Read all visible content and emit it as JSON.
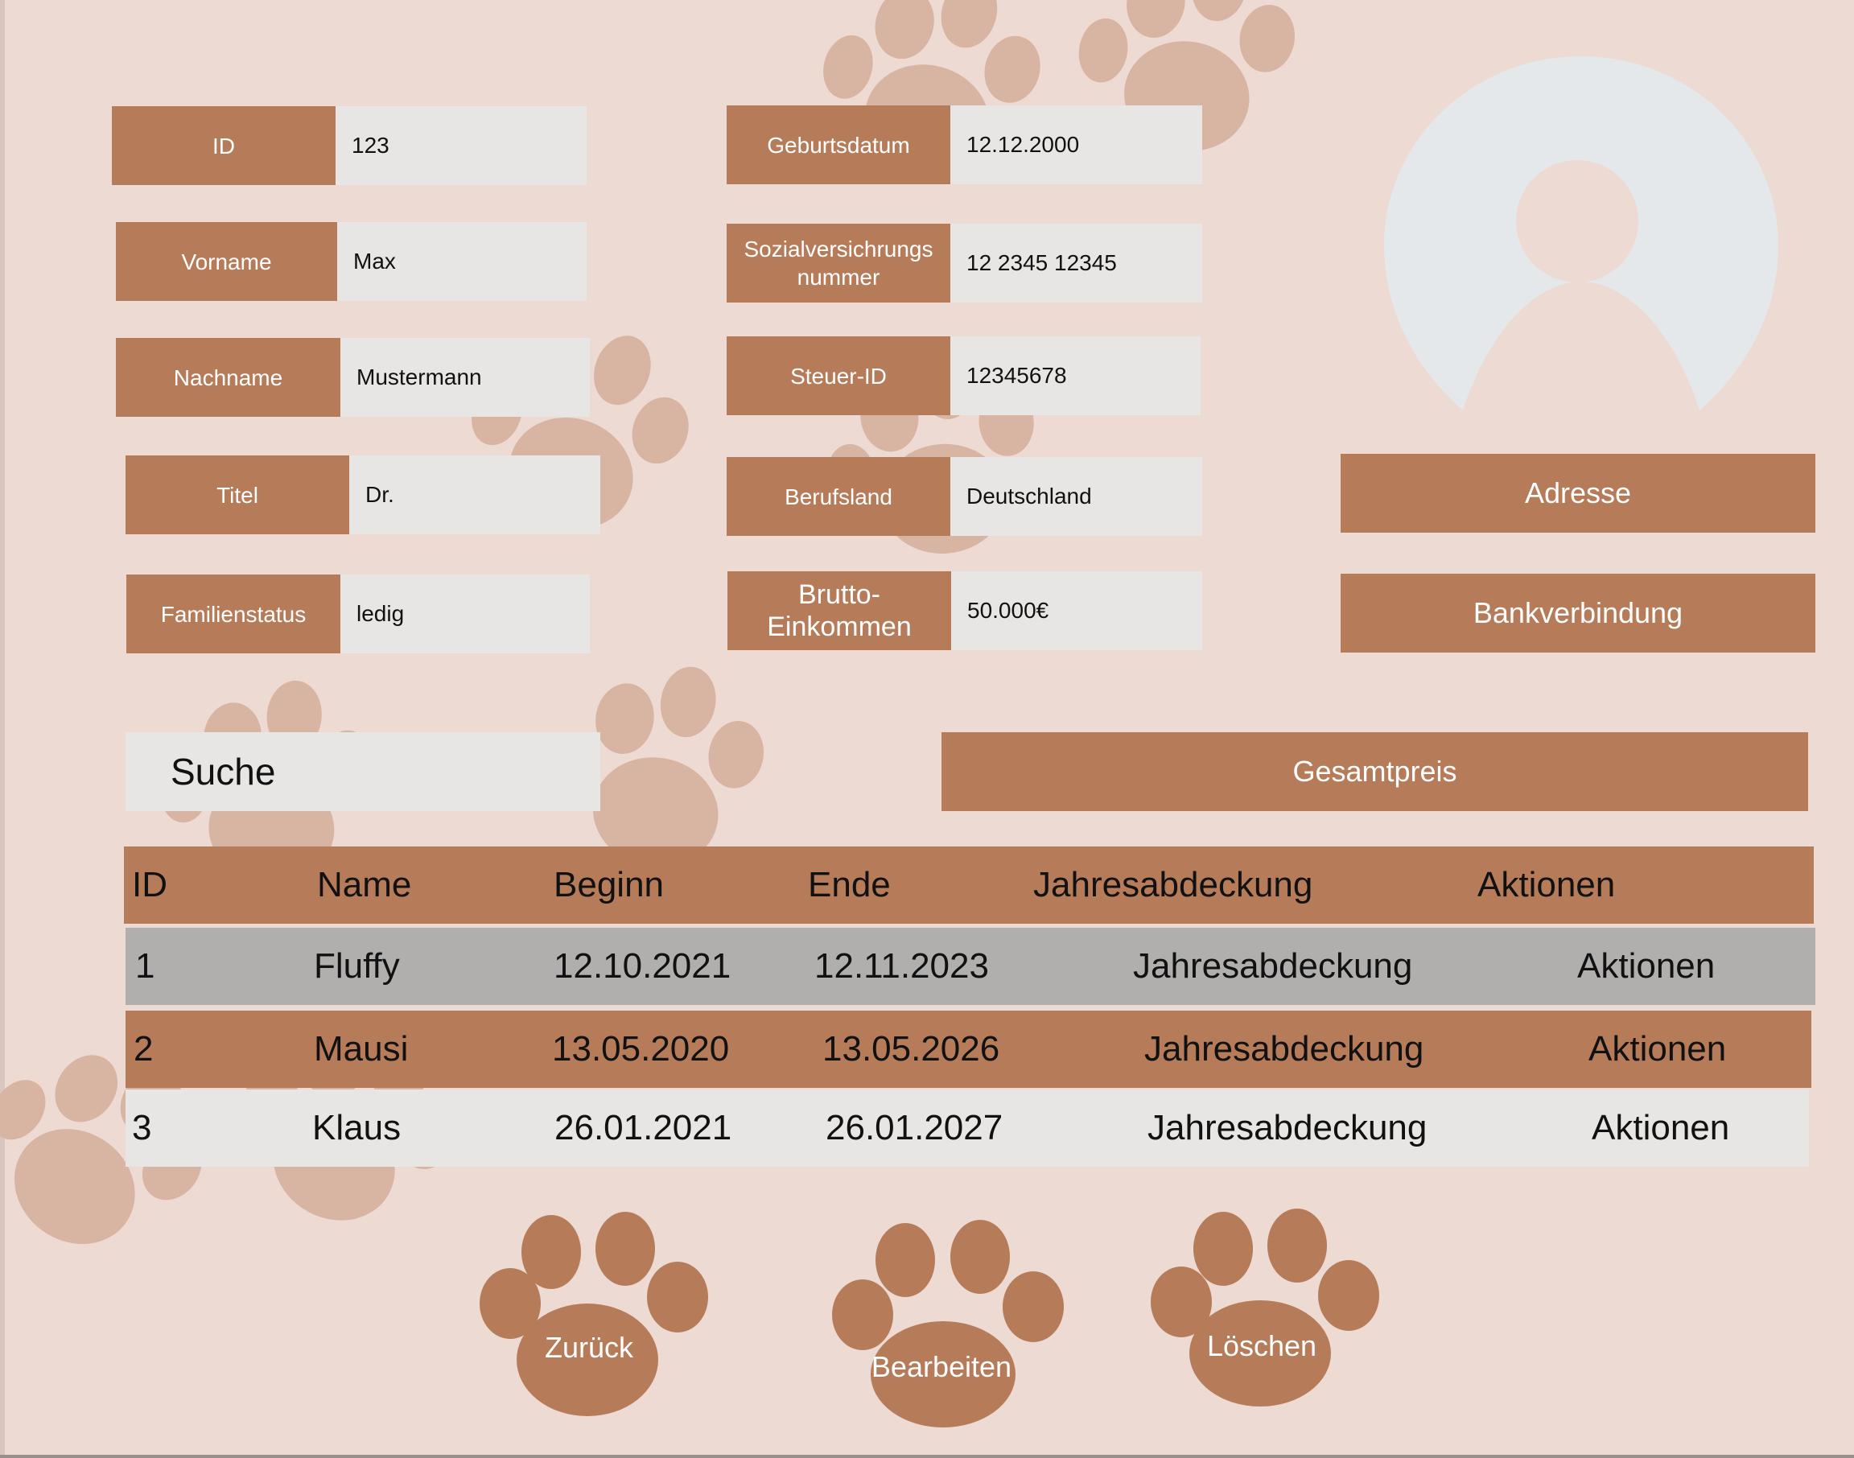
{
  "fields_left": [
    {
      "label": "ID",
      "value": "123"
    },
    {
      "label": "Vorname",
      "value": "Max"
    },
    {
      "label": "Nachname",
      "value": "Mustermann"
    },
    {
      "label": "Titel",
      "value": "Dr."
    },
    {
      "label": "Familienstatus",
      "value": "ledig"
    }
  ],
  "fields_right": [
    {
      "label": "Geburtsdatum",
      "value": "12.12.2000"
    },
    {
      "label_line1": "Sozialversichrungs",
      "label_line2": "nummer",
      "value": "12 2345 12345"
    },
    {
      "label": "Steuer-ID",
      "value": "12345678"
    },
    {
      "label": "Berufsland",
      "value": "Deutschland"
    },
    {
      "label_line1": "Brutto-",
      "label_line2": "Einkommen",
      "value": "50.000€"
    }
  ],
  "buttons": {
    "adresse": "Adresse",
    "bankverbindung": "Bankverbindung",
    "gesamtpreis": "Gesamtpreis"
  },
  "search": {
    "label": "Suche"
  },
  "table": {
    "columns": [
      "ID",
      "Name",
      "Beginn",
      "Ende",
      "Jahresabdeckung",
      "Aktionen"
    ],
    "rows": [
      {
        "id": "1",
        "name": "Fluffy",
        "beginn": "12.10.2021",
        "ende": "12.11.2023",
        "abdeckung": "Jahresabdeckung",
        "aktionen": "Aktionen"
      },
      {
        "id": "2",
        "name": "Mausi",
        "beginn": "13.05.2020",
        "ende": "13.05.2026",
        "abdeckung": "Jahresabdeckung",
        "aktionen": "Aktionen"
      },
      {
        "id": "3",
        "name": "Klaus",
        "beginn": "26.01.2021",
        "ende": "26.01.2027",
        "abdeckung": "Jahresabdeckung",
        "aktionen": "Aktionen"
      }
    ]
  },
  "actions": {
    "zurueck": "Zurück",
    "bearbeiten": "Bearbeiten",
    "loeschen": "Löschen"
  },
  "colors": {
    "background": "#eddad2",
    "accent": "#b67b59",
    "field": "#e8e6e4",
    "row_selected": "#b0afae",
    "paw_decor": "#d8b4a2",
    "avatar": "#e4e8ea"
  },
  "icons": {
    "avatar": "user-avatar-icon",
    "paw": "paw-icon"
  }
}
